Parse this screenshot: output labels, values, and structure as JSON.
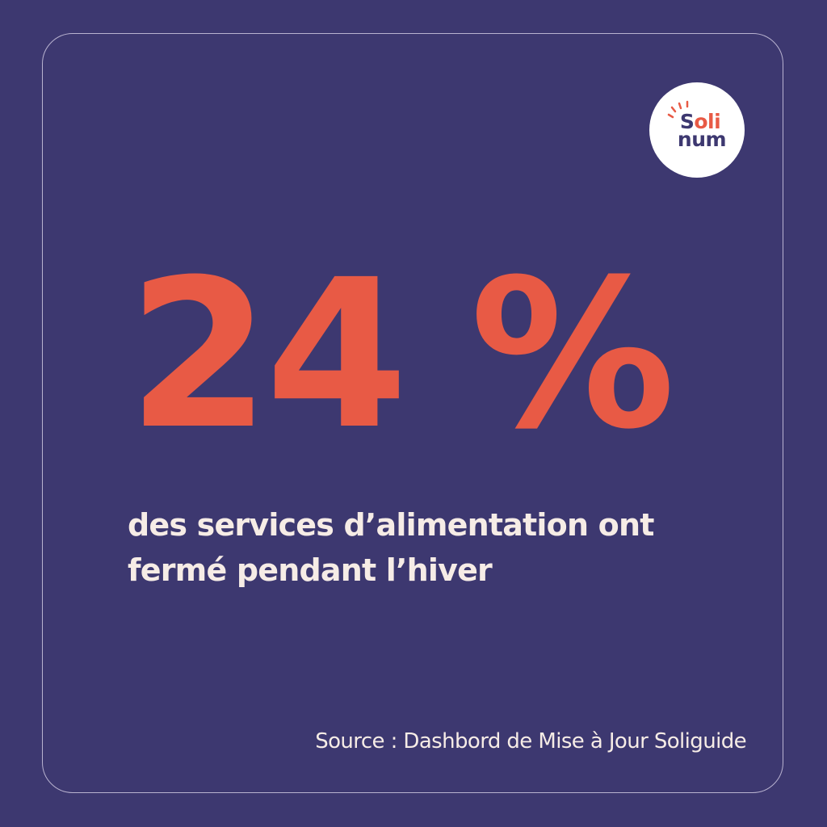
{
  "logo": {
    "line1_dark": "S",
    "line1_accent_o": "o",
    "line1_rest": "li",
    "line2": "num",
    "icon": "sun-rays-icon"
  },
  "stat": {
    "value": "24 %"
  },
  "caption": {
    "line1": "des services d’alimentation ont",
    "line2": "fermé pendant l’hiver"
  },
  "source": "Source : Dashbord de Mise à Jour Soliguide",
  "colors": {
    "background": "#3d3870",
    "accent": "#e85a45",
    "text": "#f6ece6",
    "frame_border": "#b9b3d0",
    "logo_badge": "#ffffff"
  }
}
